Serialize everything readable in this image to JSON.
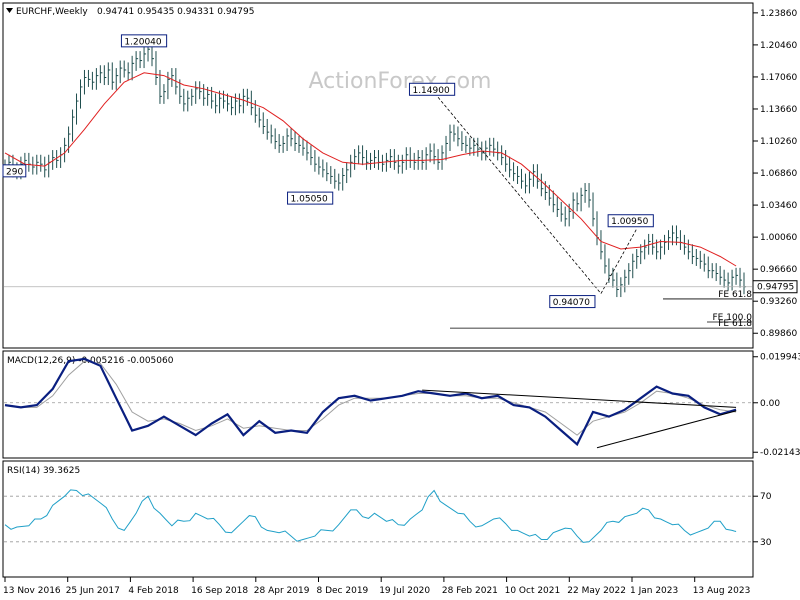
{
  "header": {
    "symbol_label": "EURCHF,Weekly",
    "ohlc": "0.94741 0.95435 0.94331 0.94795"
  },
  "watermark": "ActionForex.com",
  "colors": {
    "background": "#ffffff",
    "price_bars": "#1f4e4e",
    "moving_average": "#e02020",
    "macd_main": "#0a1f80",
    "macd_signal": "#a0a0a0",
    "rsi_line": "#20a0c8",
    "trendline": "#000000",
    "watermark": "#c8c8c8"
  },
  "chart_data": [
    {
      "type": "line",
      "title": "EURCHF,Weekly",
      "subtitle": "0.94741 0.95435 0.94331 0.94795",
      "y_ticks": [
        "1.23860",
        "1.20460",
        "1.17060",
        "1.13660",
        "1.10260",
        "1.06860",
        "1.03460",
        "1.00060",
        "0.96660",
        "0.93260",
        "0.89860"
      ],
      "ylim": [
        0.884,
        1.248
      ],
      "x_ticks": [
        "13 Nov 2016",
        "25 Jun 2017",
        "4 Feb 2018",
        "16 Sep 2018",
        "28 Apr 2019",
        "8 Dec 2019",
        "19 Jul 2020",
        "28 Feb 2021",
        "10 Oct 2021",
        "22 May 2022",
        "1 Jan 2023",
        "13 Aug 2023"
      ],
      "series": [
        {
          "role": "price",
          "x": [
            0,
            2,
            4,
            6,
            8,
            10,
            12,
            14,
            16,
            18,
            20,
            22,
            24,
            26,
            28,
            30,
            32,
            34,
            36,
            38,
            40,
            42,
            44,
            46,
            48,
            50,
            52,
            54,
            56,
            58,
            60,
            62,
            64,
            66,
            68,
            70,
            72,
            74,
            76,
            78,
            80,
            82,
            84,
            86,
            88,
            90,
            92,
            94,
            96,
            98,
            100,
            102,
            104,
            106,
            108,
            110,
            112,
            114,
            116,
            118,
            120,
            122,
            124,
            126,
            128,
            130,
            132,
            134,
            136,
            138,
            140,
            142,
            144,
            146,
            148,
            150,
            152,
            154,
            156,
            158,
            160,
            162,
            164,
            166,
            168,
            170,
            172,
            174,
            176,
            178,
            180,
            182,
            184,
            186,
            188,
            190,
            192,
            194,
            196,
            198,
            200,
            202,
            204,
            206,
            208,
            210,
            212,
            214,
            216,
            218,
            220,
            222,
            224,
            226,
            228,
            230,
            232,
            234,
            236,
            238,
            240,
            242,
            244,
            246,
            248,
            250,
            252,
            254,
            256,
            258,
            260,
            262,
            264,
            266,
            268,
            270,
            272,
            274,
            276,
            278,
            280,
            282,
            284,
            286,
            288,
            290,
            292,
            294,
            296,
            298,
            300,
            302,
            304,
            306,
            308,
            310,
            312,
            314,
            316,
            318,
            320,
            322,
            324,
            326,
            328,
            330,
            332,
            334,
            336,
            338,
            340,
            342,
            344,
            346,
            348,
            350,
            352,
            354,
            356,
            358,
            360,
            362,
            364,
            366,
            368,
            370,
            372
          ],
          "values": [
            1.075,
            1.08,
            1.072,
            1.07,
            1.078,
            1.082,
            1.078,
            1.075,
            1.08,
            1.078,
            1.072,
            1.08,
            1.085,
            1.082,
            1.088,
            1.098,
            1.11,
            1.128,
            1.145,
            1.16,
            1.17,
            1.168,
            1.165,
            1.172,
            1.175,
            1.17,
            1.178,
            1.165,
            1.172,
            1.18,
            1.178,
            1.175,
            1.185,
            1.19,
            1.188,
            1.195,
            1.2,
            1.19,
            1.17,
            1.15,
            1.155,
            1.168,
            1.172,
            1.16,
            1.15,
            1.142,
            1.148,
            1.15,
            1.158,
            1.155,
            1.148,
            1.152,
            1.145,
            1.14,
            1.148,
            1.145,
            1.142,
            1.138,
            1.145,
            1.14,
            1.15,
            1.148,
            1.138,
            1.13,
            1.125,
            1.118,
            1.112,
            1.108,
            1.102,
            1.098,
            1.1,
            1.108,
            1.105,
            1.1,
            1.098,
            1.095,
            1.09,
            1.085,
            1.078,
            1.075,
            1.072,
            1.068,
            1.065,
            1.06,
            1.058,
            1.066,
            1.072,
            1.08,
            1.086,
            1.09,
            1.085,
            1.08,
            1.082,
            1.085,
            1.08,
            1.078,
            1.082,
            1.086,
            1.08,
            1.076,
            1.08,
            1.088,
            1.082,
            1.08,
            1.085,
            1.08,
            1.088,
            1.092,
            1.086,
            1.08,
            1.09,
            1.1,
            1.112,
            1.11,
            1.105,
            1.1,
            1.098,
            1.095,
            1.098,
            1.094,
            1.09,
            1.095,
            1.098,
            1.094,
            1.09,
            1.085,
            1.078,
            1.072,
            1.068,
            1.065,
            1.06,
            1.055,
            1.062,
            1.07,
            1.06,
            1.052,
            1.048,
            1.042,
            1.035,
            1.03,
            1.025,
            1.02,
            1.028,
            1.04,
            1.036,
            1.045,
            1.05,
            1.04,
            1.02,
            1.0,
            0.985,
            0.97,
            0.96,
            0.955,
            0.945,
            0.95,
            0.958,
            0.965,
            0.975,
            0.98,
            0.985,
            0.99,
            0.996,
            0.99,
            0.985,
            0.99,
            0.995,
            1.0,
            1.005,
            1.0,
            0.995,
            0.99,
            0.985,
            0.98,
            0.978,
            0.975,
            0.972,
            0.965,
            0.965,
            0.962,
            0.958,
            0.955,
            0.952,
            0.958,
            0.96,
            0.955,
            0.948
          ]
        },
        {
          "role": "moving-average",
          "x": [
            0,
            10,
            20,
            30,
            40,
            50,
            60,
            70,
            80,
            90,
            100,
            110,
            120,
            130,
            140,
            150,
            160,
            170,
            180,
            190,
            200,
            210,
            220,
            230,
            240,
            250,
            260,
            270,
            280,
            290,
            300,
            310,
            320,
            330,
            340,
            350,
            360,
            368
          ],
          "values": [
            1.09,
            1.078,
            1.076,
            1.09,
            1.115,
            1.142,
            1.165,
            1.175,
            1.172,
            1.162,
            1.158,
            1.152,
            1.146,
            1.138,
            1.124,
            1.105,
            1.09,
            1.08,
            1.078,
            1.08,
            1.082,
            1.082,
            1.083,
            1.088,
            1.092,
            1.09,
            1.078,
            1.06,
            1.04,
            1.02,
            0.996,
            0.988,
            0.99,
            0.996,
            0.995,
            0.99,
            0.98,
            0.97
          ]
        }
      ],
      "annotations": [
        {
          "label": "1.20040",
          "x": 72,
          "value": 1.2004
        },
        {
          "label": "1.14900",
          "x": 218,
          "value": 1.149
        },
        {
          "label": "1.05050",
          "x": 168,
          "value": 1.0505
        },
        {
          "label": "1.00950",
          "x": 318,
          "value": 1.0095
        },
        {
          "label": "0.94070",
          "x": 300,
          "value": 0.9407
        },
        {
          "label": "290",
          "x": 0,
          "value": 1.072
        }
      ],
      "last_price_label": "0.94795",
      "last_price": 0.94795,
      "fib_levels": [
        {
          "label": "FE 61.8",
          "value": 0.935
        },
        {
          "label": "FE 100.0",
          "value": 0.9105
        },
        {
          "label": "FE 61.8",
          "value": 0.904
        }
      ]
    },
    {
      "type": "line",
      "title": "MACD(12,26,9) -0.005216 -0.005060",
      "y_ticks": [
        "0.019943",
        "0.00",
        "-0.021434"
      ],
      "ylim": [
        -0.0235,
        0.022
      ],
      "series": [
        {
          "role": "macd-main",
          "x": [
            0,
            8,
            16,
            24,
            32,
            40,
            48,
            56,
            64,
            72,
            80,
            88,
            96,
            104,
            112,
            120,
            128,
            136,
            144,
            152,
            160,
            168,
            176,
            184,
            192,
            200,
            208,
            216,
            224,
            232,
            240,
            248,
            256,
            264,
            272,
            280,
            288,
            296,
            304,
            312,
            320,
            328,
            336,
            344,
            352,
            360,
            368
          ],
          "values": [
            -0.001,
            -0.002,
            -0.001,
            0.006,
            0.018,
            0.019,
            0.016,
            0.002,
            -0.012,
            -0.01,
            -0.006,
            -0.01,
            -0.014,
            -0.009,
            -0.005,
            -0.014,
            -0.008,
            -0.013,
            -0.012,
            -0.013,
            -0.004,
            0.002,
            0.003,
            0.001,
            0.002,
            0.003,
            0.005,
            0.004,
            0.003,
            0.004,
            0.002,
            0.003,
            -0.001,
            -0.002,
            -0.006,
            -0.012,
            -0.018,
            -0.004,
            -0.006,
            -0.003,
            0.002,
            0.007,
            0.004,
            0.003,
            -0.002,
            -0.005,
            -0.003
          ]
        },
        {
          "role": "macd-signal",
          "x": [
            0,
            8,
            16,
            24,
            32,
            40,
            48,
            56,
            64,
            72,
            80,
            88,
            96,
            104,
            112,
            120,
            128,
            136,
            144,
            152,
            160,
            168,
            176,
            184,
            192,
            200,
            208,
            216,
            224,
            232,
            240,
            248,
            256,
            264,
            272,
            280,
            288,
            296,
            304,
            312,
            320,
            328,
            336,
            344,
            352,
            360,
            368
          ],
          "values": [
            -0.001,
            -0.002,
            -0.002,
            0.003,
            0.012,
            0.018,
            0.017,
            0.008,
            -0.004,
            -0.008,
            -0.007,
            -0.009,
            -0.012,
            -0.01,
            -0.007,
            -0.011,
            -0.01,
            -0.011,
            -0.012,
            -0.012,
            -0.007,
            -0.001,
            0.002,
            0.002,
            0.002,
            0.003,
            0.004,
            0.004,
            0.003,
            0.003,
            0.002,
            0.002,
            0.0,
            -0.002,
            -0.004,
            -0.009,
            -0.014,
            -0.008,
            -0.006,
            -0.004,
            0.0,
            0.005,
            0.004,
            0.002,
            -0.001,
            -0.003,
            -0.004
          ]
        }
      ],
      "reference_line": 0
    },
    {
      "type": "line",
      "title": "RSI(14) 39.3625",
      "y_ticks": [
        "70",
        "30"
      ],
      "ylim": [
        0,
        100
      ],
      "series": [
        {
          "role": "rsi",
          "x": [
            0,
            6,
            12,
            18,
            24,
            30,
            36,
            42,
            48,
            54,
            60,
            66,
            72,
            78,
            84,
            90,
            96,
            102,
            108,
            114,
            120,
            126,
            132,
            138,
            144,
            150,
            156,
            162,
            168,
            174,
            180,
            186,
            192,
            198,
            204,
            210,
            216,
            222,
            228,
            234,
            240,
            246,
            252,
            258,
            264,
            270,
            276,
            282,
            288,
            294,
            300,
            306,
            312,
            318,
            324,
            330,
            336,
            342,
            348,
            354,
            360,
            366,
            368
          ],
          "values": [
            45,
            43,
            44,
            50,
            62,
            70,
            75,
            72,
            64,
            50,
            40,
            55,
            70,
            55,
            44,
            48,
            55,
            50,
            45,
            38,
            48,
            52,
            40,
            38,
            35,
            32,
            35,
            40,
            45,
            58,
            52,
            55,
            48,
            45,
            50,
            58,
            75,
            62,
            55,
            48,
            44,
            50,
            46,
            40,
            35,
            32,
            38,
            42,
            35,
            30,
            40,
            48,
            52,
            55,
            58,
            50,
            45,
            40,
            38,
            42,
            48,
            40,
            39
          ]
        }
      ],
      "reference_lines": [
        70,
        30
      ]
    }
  ]
}
